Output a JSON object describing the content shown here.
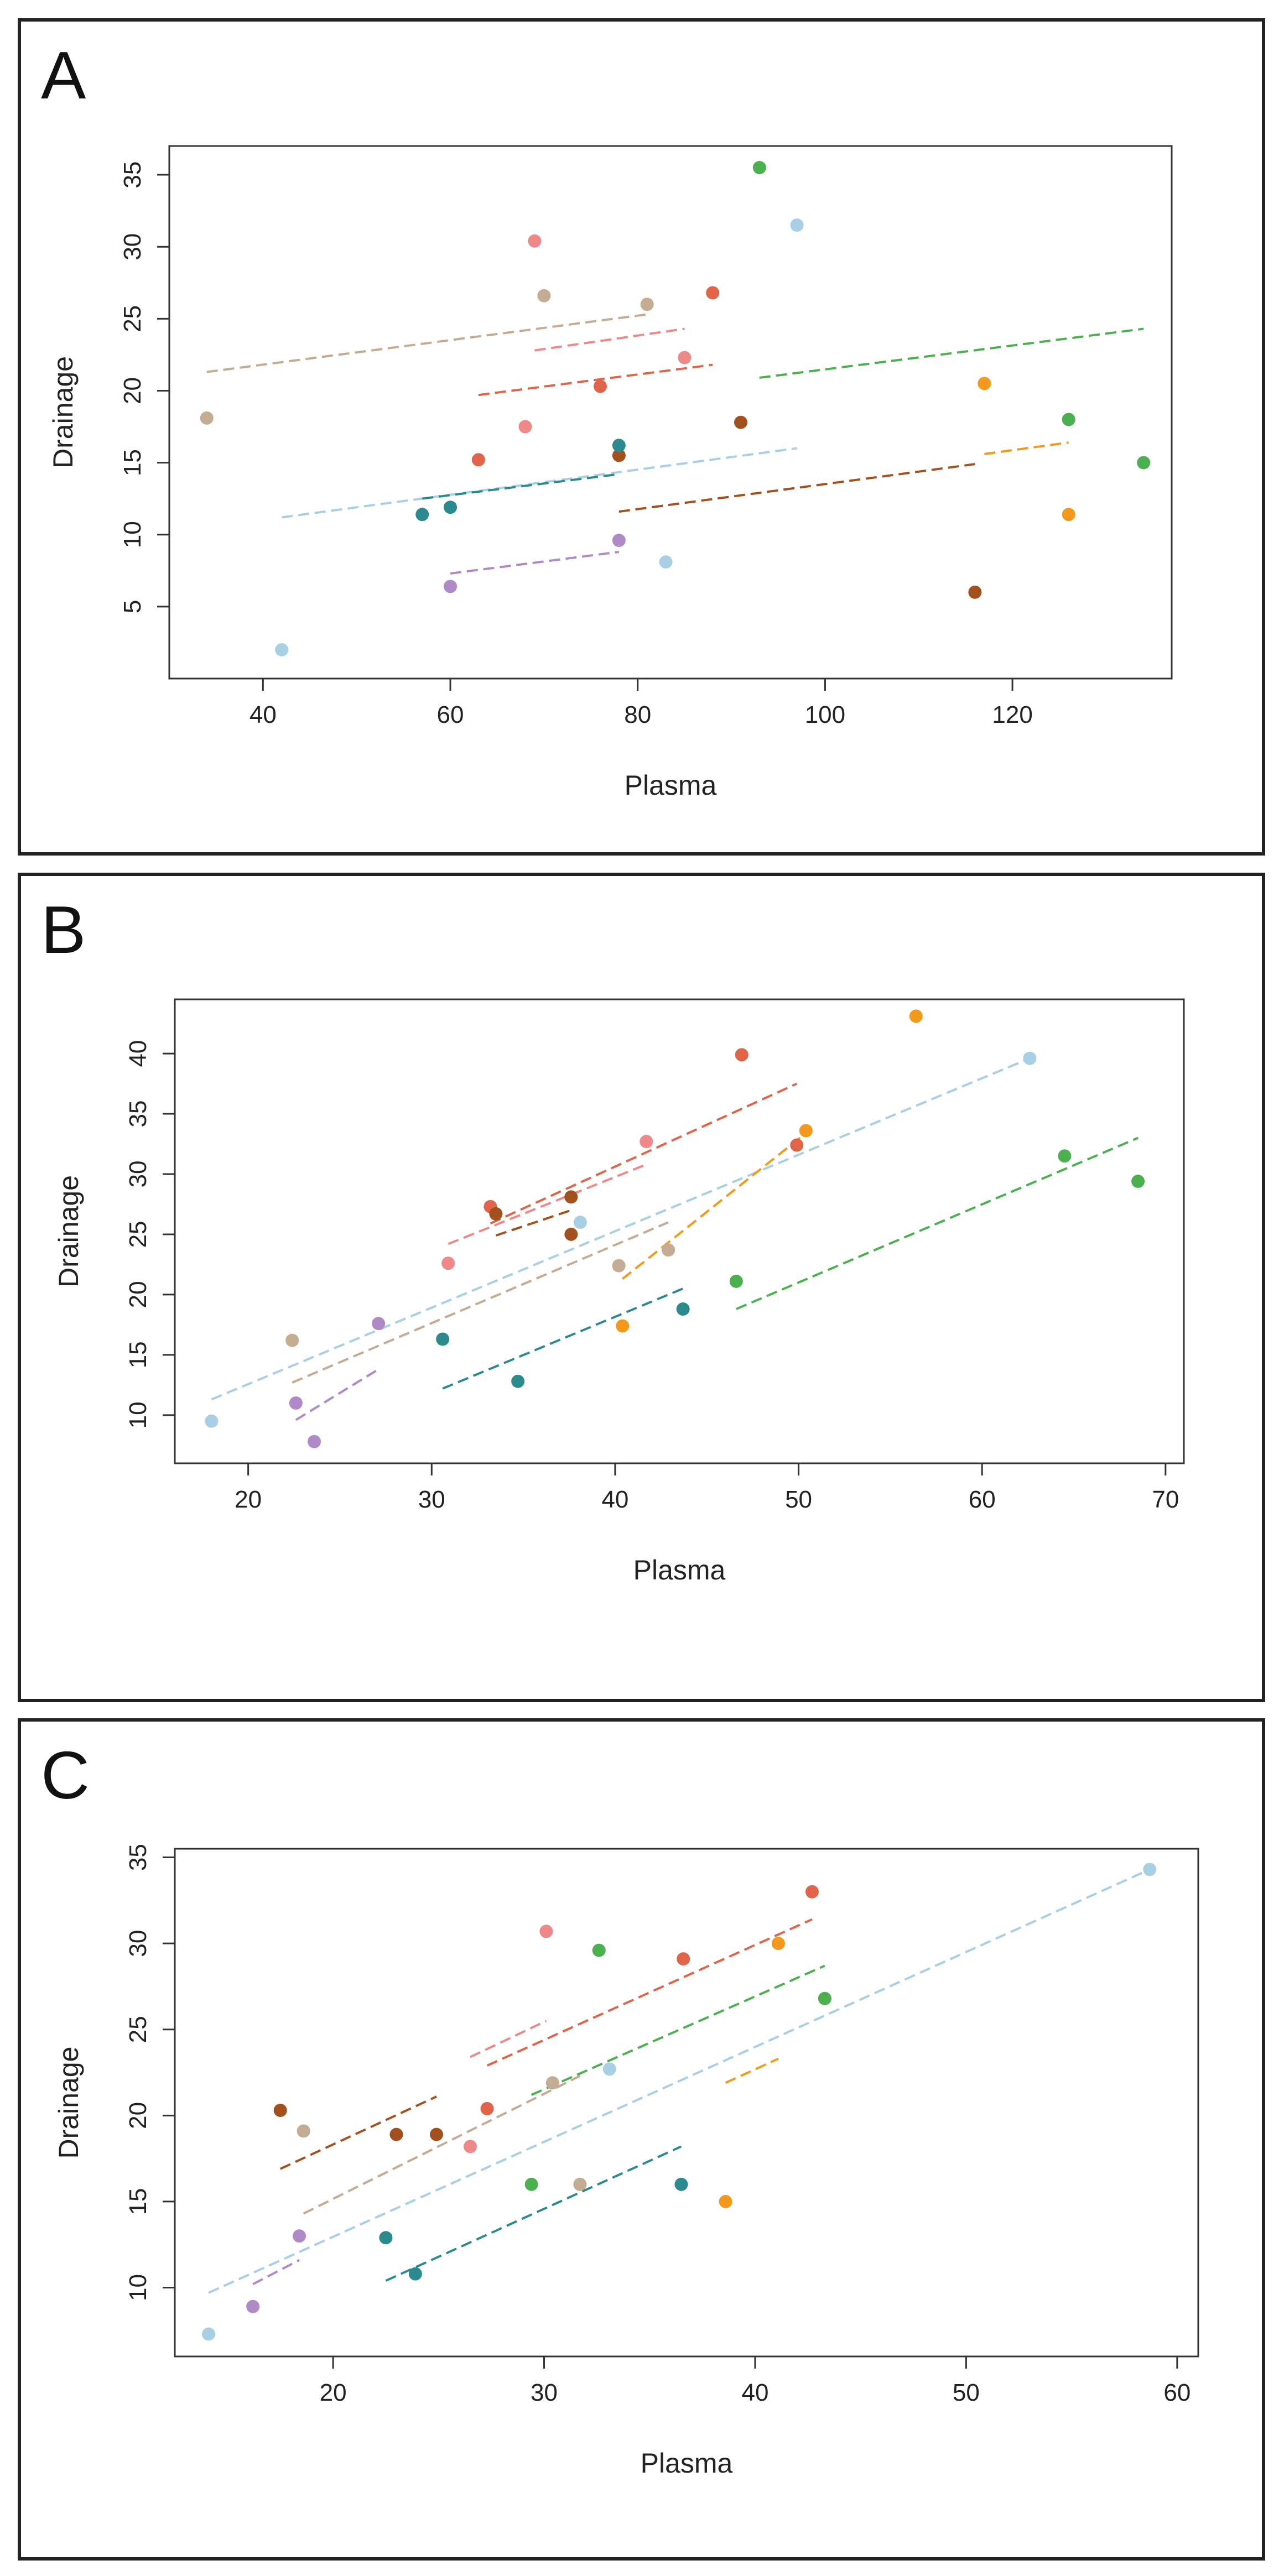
{
  "chart_data": [
    {
      "panel_label": "A",
      "type": "scatter",
      "xlabel": "Plasma",
      "ylabel": "Drainage",
      "xlim": [
        30,
        137
      ],
      "ylim": [
        0,
        37
      ],
      "xticks": [
        40,
        60,
        80,
        100,
        120
      ],
      "yticks": [
        5,
        10,
        15,
        20,
        25,
        30,
        35
      ],
      "points": [
        {
          "x": 34,
          "y": 18.1,
          "color": "#c4ab94"
        },
        {
          "x": 42,
          "y": 2.0,
          "color": "#a9cfe4"
        },
        {
          "x": 57,
          "y": 11.4,
          "color": "#2c8a8f"
        },
        {
          "x": 60,
          "y": 11.9,
          "color": "#2c8a8f"
        },
        {
          "x": 60,
          "y": 6.4,
          "color": "#b08ac7"
        },
        {
          "x": 63,
          "y": 15.2,
          "color": "#e0644a"
        },
        {
          "x": 68,
          "y": 17.5,
          "color": "#ef8888"
        },
        {
          "x": 69,
          "y": 30.4,
          "color": "#ef8888"
        },
        {
          "x": 70,
          "y": 26.6,
          "color": "#c4ab94"
        },
        {
          "x": 76,
          "y": 20.3,
          "color": "#e0644a"
        },
        {
          "x": 78,
          "y": 9.6,
          "color": "#b08ac7"
        },
        {
          "x": 78,
          "y": 15.5,
          "color": "#a3501f"
        },
        {
          "x": 78,
          "y": 16.2,
          "color": "#2c8a8f"
        },
        {
          "x": 81,
          "y": 26.0,
          "color": "#c4ab94"
        },
        {
          "x": 83,
          "y": 8.1,
          "color": "#a9cfe4"
        },
        {
          "x": 85,
          "y": 22.3,
          "color": "#ef8888"
        },
        {
          "x": 88,
          "y": 26.8,
          "color": "#e0644a"
        },
        {
          "x": 91,
          "y": 17.8,
          "color": "#a3501f"
        },
        {
          "x": 93,
          "y": 35.5,
          "color": "#4caf50"
        },
        {
          "x": 97,
          "y": 31.5,
          "color": "#a9cfe4"
        },
        {
          "x": 116,
          "y": 6.0,
          "color": "#a3501f"
        },
        {
          "x": 117,
          "y": 20.5,
          "color": "#f39a1e"
        },
        {
          "x": 126,
          "y": 18.0,
          "color": "#4caf50"
        },
        {
          "x": 126,
          "y": 11.4,
          "color": "#f39a1e"
        },
        {
          "x": 134,
          "y": 15.0,
          "color": "#4caf50"
        }
      ],
      "fit_lines": [
        {
          "x1": 34,
          "y1": 21.3,
          "x2": 81,
          "y2": 25.3,
          "color": "#c4ab94"
        },
        {
          "x1": 69,
          "y1": 22.8,
          "x2": 85,
          "y2": 24.3,
          "color": "#ef8888"
        },
        {
          "x1": 63,
          "y1": 19.7,
          "x2": 88,
          "y2": 21.8,
          "color": "#e0644a"
        },
        {
          "x1": 42,
          "y1": 11.2,
          "x2": 97,
          "y2": 16.0,
          "color": "#a9cfe4"
        },
        {
          "x1": 57,
          "y1": 12.5,
          "x2": 78,
          "y2": 14.2,
          "color": "#2c8a8f"
        },
        {
          "x1": 60,
          "y1": 7.3,
          "x2": 78,
          "y2": 8.8,
          "color": "#b08ac7"
        },
        {
          "x1": 78,
          "y1": 11.6,
          "x2": 116,
          "y2": 14.9,
          "color": "#a3501f"
        },
        {
          "x1": 93,
          "y1": 20.9,
          "x2": 134,
          "y2": 24.3,
          "color": "#4caf50"
        },
        {
          "x1": 117,
          "y1": 15.6,
          "x2": 126,
          "y2": 16.4,
          "color": "#f39a1e"
        }
      ]
    },
    {
      "panel_label": "B",
      "type": "scatter",
      "xlabel": "Plasma",
      "ylabel": "Drainage",
      "xlim": [
        16,
        71
      ],
      "ylim": [
        6,
        44.5
      ],
      "xticks": [
        20,
        30,
        40,
        50,
        60,
        70
      ],
      "yticks": [
        10,
        15,
        20,
        25,
        30,
        35,
        40
      ],
      "points": [
        {
          "x": 18,
          "y": 9.5,
          "color": "#a9cfe4"
        },
        {
          "x": 22.4,
          "y": 16.2,
          "color": "#c4ab94"
        },
        {
          "x": 22.6,
          "y": 11.0,
          "color": "#b08ac7"
        },
        {
          "x": 23.6,
          "y": 7.8,
          "color": "#b08ac7"
        },
        {
          "x": 27.1,
          "y": 17.6,
          "color": "#b08ac7"
        },
        {
          "x": 30.6,
          "y": 16.3,
          "color": "#2c8a8f"
        },
        {
          "x": 30.9,
          "y": 22.6,
          "color": "#ef8888"
        },
        {
          "x": 33.2,
          "y": 27.3,
          "color": "#e0644a"
        },
        {
          "x": 33.5,
          "y": 26.7,
          "color": "#a3501f"
        },
        {
          "x": 34.7,
          "y": 12.8,
          "color": "#2c8a8f"
        },
        {
          "x": 37.6,
          "y": 28.1,
          "color": "#a3501f"
        },
        {
          "x": 37.6,
          "y": 25.0,
          "color": "#a3501f"
        },
        {
          "x": 38.1,
          "y": 26.0,
          "color": "#a9cfe4"
        },
        {
          "x": 40.2,
          "y": 22.4,
          "color": "#c4ab94"
        },
        {
          "x": 40.4,
          "y": 17.4,
          "color": "#f39a1e"
        },
        {
          "x": 41.7,
          "y": 32.7,
          "color": "#ef8888"
        },
        {
          "x": 42.9,
          "y": 23.7,
          "color": "#c4ab94"
        },
        {
          "x": 43.7,
          "y": 18.8,
          "color": "#2c8a8f"
        },
        {
          "x": 46.6,
          "y": 21.1,
          "color": "#4caf50"
        },
        {
          "x": 46.9,
          "y": 39.9,
          "color": "#e0644a"
        },
        {
          "x": 49.9,
          "y": 32.4,
          "color": "#e0644a"
        },
        {
          "x": 50.4,
          "y": 33.6,
          "color": "#f39a1e"
        },
        {
          "x": 56.4,
          "y": 43.1,
          "color": "#f39a1e"
        },
        {
          "x": 62.6,
          "y": 39.6,
          "color": "#a9cfe4"
        },
        {
          "x": 64.5,
          "y": 31.5,
          "color": "#4caf50"
        },
        {
          "x": 68.5,
          "y": 29.4,
          "color": "#4caf50"
        }
      ],
      "fit_lines": [
        {
          "x1": 18,
          "y1": 11.3,
          "x2": 62.6,
          "y2": 39.6,
          "color": "#a9cfe4"
        },
        {
          "x1": 22.4,
          "y1": 12.7,
          "x2": 42.9,
          "y2": 26.0,
          "color": "#c4ab94"
        },
        {
          "x1": 22.6,
          "y1": 9.6,
          "x2": 27.1,
          "y2": 13.8,
          "color": "#b08ac7"
        },
        {
          "x1": 30.6,
          "y1": 12.2,
          "x2": 43.7,
          "y2": 20.5,
          "color": "#2c8a8f"
        },
        {
          "x1": 30.9,
          "y1": 24.2,
          "x2": 41.7,
          "y2": 30.8,
          "color": "#ef8888"
        },
        {
          "x1": 33.2,
          "y1": 25.9,
          "x2": 49.9,
          "y2": 37.5,
          "color": "#e0644a"
        },
        {
          "x1": 33.5,
          "y1": 24.9,
          "x2": 37.6,
          "y2": 27.0,
          "color": "#a3501f"
        },
        {
          "x1": 40.4,
          "y1": 21.3,
          "x2": 50.4,
          "y2": 33.4,
          "color": "#f39a1e"
        },
        {
          "x1": 46.6,
          "y1": 18.8,
          "x2": 68.5,
          "y2": 33.0,
          "color": "#4caf50"
        }
      ]
    },
    {
      "panel_label": "C",
      "type": "scatter",
      "xlabel": "Plasma",
      "ylabel": "Drainage",
      "xlim": [
        12.5,
        61
      ],
      "ylim": [
        6,
        35.5
      ],
      "xticks": [
        20,
        30,
        40,
        50,
        60
      ],
      "yticks": [
        10,
        15,
        20,
        25,
        30,
        35
      ],
      "points": [
        {
          "x": 14.1,
          "y": 7.3,
          "color": "#a9cfe4"
        },
        {
          "x": 16.2,
          "y": 8.9,
          "color": "#b08ac7"
        },
        {
          "x": 17.5,
          "y": 20.3,
          "color": "#a3501f"
        },
        {
          "x": 18.4,
          "y": 13.0,
          "color": "#b08ac7"
        },
        {
          "x": 18.6,
          "y": 19.1,
          "color": "#c4ab94"
        },
        {
          "x": 22.5,
          "y": 12.9,
          "color": "#2c8a8f"
        },
        {
          "x": 23.0,
          "y": 18.9,
          "color": "#a3501f"
        },
        {
          "x": 23.9,
          "y": 10.8,
          "color": "#2c8a8f"
        },
        {
          "x": 24.9,
          "y": 18.9,
          "color": "#a3501f"
        },
        {
          "x": 26.5,
          "y": 18.2,
          "color": "#ef8888"
        },
        {
          "x": 27.3,
          "y": 20.4,
          "color": "#e0644a"
        },
        {
          "x": 29.4,
          "y": 16.0,
          "color": "#4caf50"
        },
        {
          "x": 30.1,
          "y": 30.7,
          "color": "#ef8888"
        },
        {
          "x": 30.4,
          "y": 21.9,
          "color": "#c4ab94"
        },
        {
          "x": 31.7,
          "y": 16.0,
          "color": "#c4ab94"
        },
        {
          "x": 32.6,
          "y": 29.6,
          "color": "#4caf50"
        },
        {
          "x": 33.1,
          "y": 22.7,
          "color": "#a9cfe4"
        },
        {
          "x": 36.5,
          "y": 16.0,
          "color": "#2c8a8f"
        },
        {
          "x": 36.6,
          "y": 29.1,
          "color": "#e0644a"
        },
        {
          "x": 38.6,
          "y": 15.0,
          "color": "#f39a1e"
        },
        {
          "x": 41.1,
          "y": 30.0,
          "color": "#f39a1e"
        },
        {
          "x": 42.7,
          "y": 33.0,
          "color": "#e0644a"
        },
        {
          "x": 43.3,
          "y": 26.8,
          "color": "#4caf50"
        },
        {
          "x": 58.7,
          "y": 34.3,
          "color": "#a9cfe4"
        }
      ],
      "fit_lines": [
        {
          "x1": 14.1,
          "y1": 9.7,
          "x2": 58.7,
          "y2": 34.3,
          "color": "#a9cfe4"
        },
        {
          "x1": 16.2,
          "y1": 10.2,
          "x2": 18.4,
          "y2": 11.6,
          "color": "#b08ac7"
        },
        {
          "x1": 17.5,
          "y1": 16.9,
          "x2": 24.9,
          "y2": 21.1,
          "color": "#a3501f"
        },
        {
          "x1": 18.6,
          "y1": 14.3,
          "x2": 31.7,
          "y2": 22.3,
          "color": "#c4ab94"
        },
        {
          "x1": 22.5,
          "y1": 10.4,
          "x2": 36.5,
          "y2": 18.2,
          "color": "#2c8a8f"
        },
        {
          "x1": 26.5,
          "y1": 23.4,
          "x2": 30.1,
          "y2": 25.5,
          "color": "#ef8888"
        },
        {
          "x1": 27.3,
          "y1": 22.9,
          "x2": 42.7,
          "y2": 31.4,
          "color": "#e0644a"
        },
        {
          "x1": 29.4,
          "y1": 21.2,
          "x2": 43.3,
          "y2": 28.7,
          "color": "#4caf50"
        },
        {
          "x1": 38.6,
          "y1": 21.9,
          "x2": 41.1,
          "y2": 23.3,
          "color": "#f39a1e"
        }
      ]
    }
  ]
}
